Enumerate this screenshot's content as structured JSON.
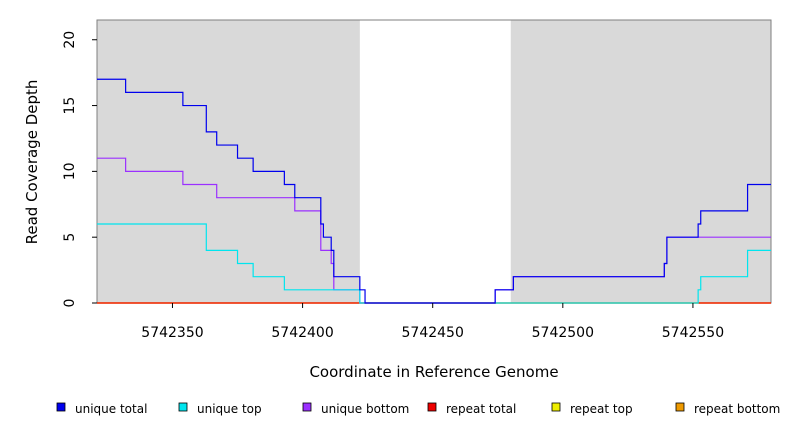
{
  "chart_data": {
    "type": "line",
    "title": "",
    "xlabel": "Coordinate in Reference Genome",
    "ylabel": "Read Coverage Depth",
    "xlim": [
      5742321,
      5742580
    ],
    "ylim": [
      0,
      21.5
    ],
    "xticks": [
      5742350,
      5742400,
      5742450,
      5742500,
      5742550
    ],
    "yticks": [
      0,
      5,
      10,
      15,
      20
    ],
    "grid": false,
    "legend_position": "bottom",
    "shaded_regions": [
      [
        5742321,
        5742422
      ],
      [
        5742480,
        5742580
      ]
    ],
    "shade_color": "#d9d9d9",
    "series": [
      {
        "name": "unique total",
        "color": "#0000ee",
        "steps": [
          [
            5742321,
            17
          ],
          [
            5742332,
            16
          ],
          [
            5742354,
            15
          ],
          [
            5742363,
            13
          ],
          [
            5742367,
            12
          ],
          [
            5742375,
            11
          ],
          [
            5742381,
            10
          ],
          [
            5742393,
            9
          ],
          [
            5742397,
            8
          ],
          [
            5742407,
            6
          ],
          [
            5742408,
            5
          ],
          [
            5742411,
            4
          ],
          [
            5742412,
            2
          ],
          [
            5742422,
            1
          ],
          [
            5742424,
            0
          ],
          [
            5742474,
            1
          ],
          [
            5742481,
            2
          ],
          [
            5742539,
            3
          ],
          [
            5742540,
            5
          ],
          [
            5742552,
            6
          ],
          [
            5742553,
            7
          ],
          [
            5742571,
            9
          ],
          [
            5742580,
            9
          ]
        ]
      },
      {
        "name": "unique top",
        "color": "#00e5ee",
        "steps": [
          [
            5742321,
            6
          ],
          [
            5742363,
            4
          ],
          [
            5742375,
            3
          ],
          [
            5742381,
            2
          ],
          [
            5742393,
            1
          ],
          [
            5742422,
            0
          ],
          [
            5742552,
            1
          ],
          [
            5742553,
            2
          ],
          [
            5742571,
            4
          ],
          [
            5742580,
            4
          ]
        ]
      },
      {
        "name": "unique bottom",
        "color": "#9b30ff",
        "steps": [
          [
            5742321,
            11
          ],
          [
            5742332,
            10
          ],
          [
            5742354,
            9
          ],
          [
            5742367,
            8
          ],
          [
            5742397,
            7
          ],
          [
            5742407,
            4
          ],
          [
            5742411,
            3
          ],
          [
            5742412,
            1
          ],
          [
            5742422,
            0
          ],
          [
            5742474,
            1
          ],
          [
            5742481,
            2
          ],
          [
            5742539,
            3
          ],
          [
            5742540,
            5
          ],
          [
            5742580,
            5
          ]
        ]
      },
      {
        "name": "repeat total",
        "color": "#ee0000",
        "steps": [
          [
            5742321,
            0
          ],
          [
            5742580,
            0
          ]
        ]
      },
      {
        "name": "repeat top",
        "color": "#eeee00",
        "steps": [
          [
            5742321,
            0
          ],
          [
            5742580,
            0
          ]
        ]
      },
      {
        "name": "repeat bottom",
        "color": "#ee9a00",
        "steps": [
          [
            5742321,
            0
          ],
          [
            5742580,
            0
          ]
        ]
      }
    ]
  }
}
